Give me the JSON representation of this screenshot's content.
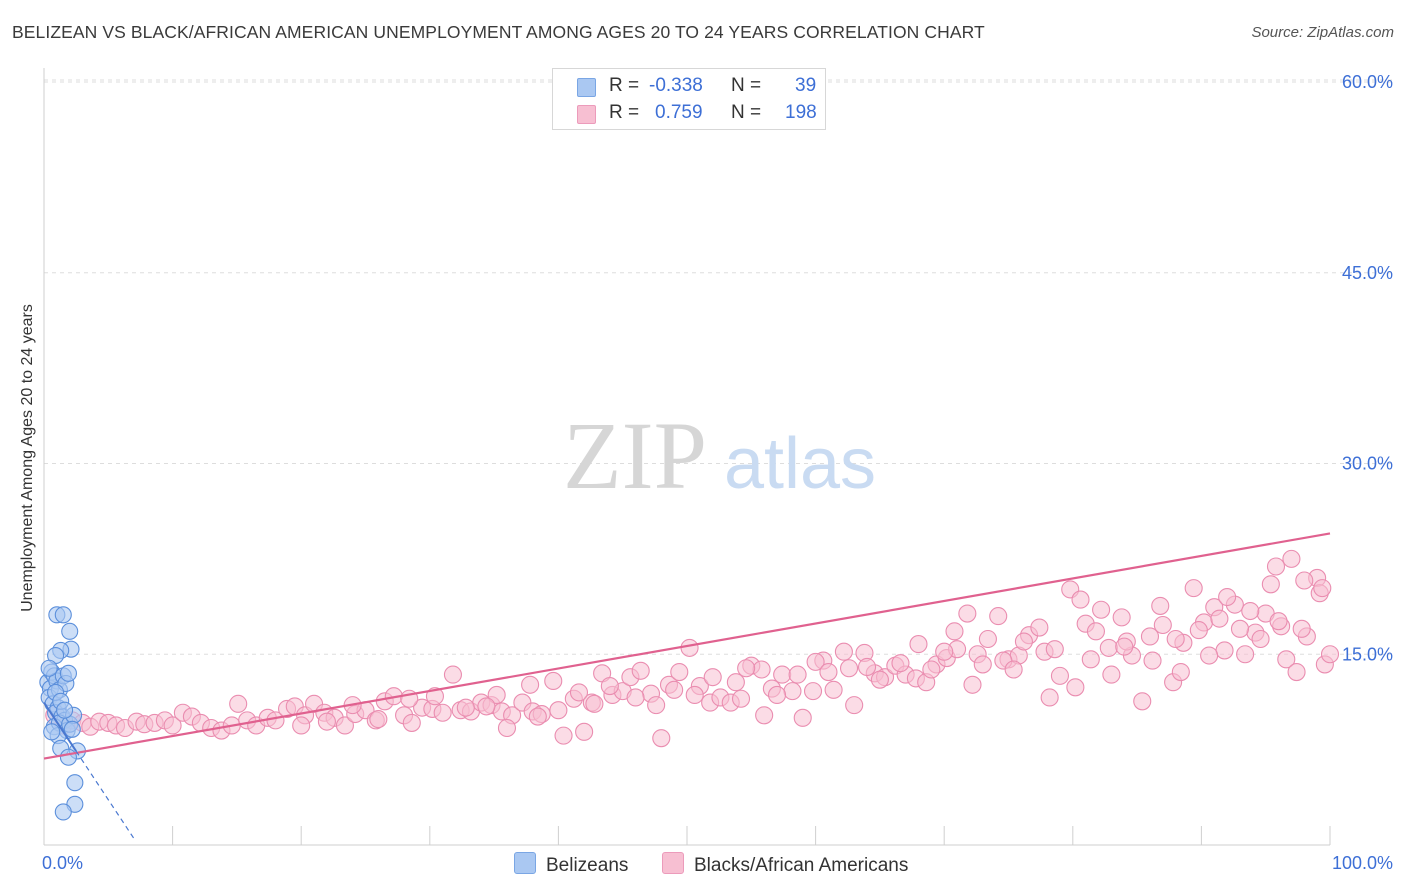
{
  "header": {
    "title": "BELIZEAN VS BLACK/AFRICAN AMERICAN UNEMPLOYMENT AMONG AGES 20 TO 24 YEARS CORRELATION CHART",
    "source": "Source: ZipAtlas.com"
  },
  "legend": {
    "r_label": "R =",
    "n_label": "N =",
    "entries": [
      {
        "r": "-0.338",
        "n": "39"
      },
      {
        "r": "0.759",
        "n": "198"
      }
    ]
  },
  "watermark": {
    "zip": "ZIP",
    "atlas": "atlas"
  },
  "chart_data": {
    "type": "scatter",
    "title": "BELIZEAN VS BLACK/AFRICAN AMERICAN UNEMPLOYMENT AMONG AGES 20 TO 24 YEARS CORRELATION CHART",
    "xlabel": "",
    "ylabel": "Unemployment Among Ages 20 to 24 years",
    "xlim": [
      0,
      100
    ],
    "ylim": [
      0,
      60
    ],
    "x_tick_labels": [
      "0.0%",
      "100.0%"
    ],
    "y_ticks": [
      15,
      30,
      45,
      60
    ],
    "y_tick_labels": [
      "15.0%",
      "30.0%",
      "45.0%",
      "60.0%"
    ],
    "grid": true,
    "colors": {
      "blue_fill": "#aac8f2",
      "blue_stroke": "#5b8fdb",
      "blue_line": "#4a78d0",
      "pink_fill": "#f7bfd2",
      "pink_stroke": "#ea8db0",
      "pink_line": "#e0618f",
      "axis_text": "#3d6fd6"
    },
    "series": [
      {
        "name": "Belizeans",
        "r": -0.338,
        "n": 39,
        "trend": {
          "x": [
            0,
            7.0
          ],
          "y": [
            11.2,
            0.5
          ],
          "solid_until": 2.5
        },
        "points": [
          [
            0.3,
            12.8
          ],
          [
            0.5,
            12.3
          ],
          [
            0.4,
            11.6
          ],
          [
            0.6,
            13.6
          ],
          [
            0.8,
            13.3
          ],
          [
            1.0,
            12.9
          ],
          [
            1.2,
            12.2
          ],
          [
            0.7,
            11.1
          ],
          [
            1.1,
            10.8
          ],
          [
            0.9,
            10.4
          ],
          [
            1.4,
            10.1
          ],
          [
            1.6,
            9.8
          ],
          [
            0.8,
            9.3
          ],
          [
            1.2,
            9.6
          ],
          [
            1.8,
            9.0
          ],
          [
            2.0,
            9.5
          ],
          [
            2.3,
            10.2
          ],
          [
            1.5,
            13.3
          ],
          [
            1.7,
            12.7
          ],
          [
            1.9,
            13.5
          ],
          [
            1.0,
            18.1
          ],
          [
            1.5,
            18.1
          ],
          [
            2.0,
            16.8
          ],
          [
            2.1,
            15.4
          ],
          [
            1.3,
            15.3
          ],
          [
            0.9,
            14.9
          ],
          [
            1.1,
            8.6
          ],
          [
            0.6,
            8.9
          ],
          [
            1.3,
            7.6
          ],
          [
            2.6,
            7.4
          ],
          [
            1.9,
            6.9
          ],
          [
            2.4,
            4.9
          ],
          [
            2.4,
            3.2
          ],
          [
            1.5,
            2.6
          ],
          [
            0.4,
            13.9
          ],
          [
            0.9,
            12.0
          ],
          [
            1.3,
            11.3
          ],
          [
            1.6,
            10.6
          ],
          [
            2.2,
            9.1
          ]
        ]
      },
      {
        "name": "Blacks/African Americans",
        "r": 0.759,
        "n": 198,
        "trend": {
          "x": [
            0,
            100
          ],
          "y": [
            6.8,
            24.5
          ]
        },
        "points": [
          [
            0.8,
            10.2
          ],
          [
            1.5,
            9.4
          ],
          [
            2.2,
            9.8
          ],
          [
            3.0,
            9.6
          ],
          [
            3.6,
            9.3
          ],
          [
            4.3,
            9.7
          ],
          [
            5.0,
            9.6
          ],
          [
            5.6,
            9.4
          ],
          [
            6.3,
            9.2
          ],
          [
            7.2,
            9.7
          ],
          [
            7.8,
            9.5
          ],
          [
            8.6,
            9.6
          ],
          [
            9.4,
            9.8
          ],
          [
            10.0,
            9.4
          ],
          [
            10.8,
            10.4
          ],
          [
            11.5,
            10.1
          ],
          [
            12.2,
            9.6
          ],
          [
            13.0,
            9.2
          ],
          [
            13.8,
            9.0
          ],
          [
            14.6,
            9.4
          ],
          [
            15.1,
            11.1
          ],
          [
            15.8,
            9.8
          ],
          [
            16.5,
            9.4
          ],
          [
            17.4,
            10.0
          ],
          [
            18.0,
            9.8
          ],
          [
            18.9,
            10.7
          ],
          [
            19.5,
            10.9
          ],
          [
            20.3,
            10.2
          ],
          [
            21.0,
            11.1
          ],
          [
            21.8,
            10.4
          ],
          [
            22.6,
            10.0
          ],
          [
            23.4,
            9.4
          ],
          [
            24.2,
            10.3
          ],
          [
            25.0,
            10.6
          ],
          [
            25.8,
            9.8
          ],
          [
            26.5,
            11.3
          ],
          [
            27.2,
            11.7
          ],
          [
            28.0,
            10.2
          ],
          [
            28.6,
            9.6
          ],
          [
            29.4,
            10.8
          ],
          [
            30.2,
            10.7
          ],
          [
            31.0,
            10.4
          ],
          [
            31.8,
            13.4
          ],
          [
            32.4,
            10.6
          ],
          [
            33.2,
            10.5
          ],
          [
            34.0,
            11.2
          ],
          [
            34.8,
            11.0
          ],
          [
            35.6,
            10.5
          ],
          [
            36.4,
            10.2
          ],
          [
            37.2,
            11.2
          ],
          [
            38.0,
            10.5
          ],
          [
            38.7,
            10.3
          ],
          [
            39.6,
            12.9
          ],
          [
            40.4,
            8.6
          ],
          [
            41.2,
            11.5
          ],
          [
            42.0,
            8.9
          ],
          [
            42.6,
            11.2
          ],
          [
            43.4,
            13.5
          ],
          [
            44.2,
            11.8
          ],
          [
            45.0,
            12.1
          ],
          [
            45.6,
            13.2
          ],
          [
            46.4,
            13.7
          ],
          [
            47.2,
            11.9
          ],
          [
            48.0,
            8.4
          ],
          [
            48.6,
            12.6
          ],
          [
            49.4,
            13.6
          ],
          [
            50.2,
            15.5
          ],
          [
            51.0,
            12.5
          ],
          [
            51.8,
            11.2
          ],
          [
            52.6,
            11.6
          ],
          [
            53.4,
            11.2
          ],
          [
            54.2,
            11.5
          ],
          [
            55.0,
            14.1
          ],
          [
            55.8,
            13.8
          ],
          [
            56.6,
            12.3
          ],
          [
            57.4,
            13.4
          ],
          [
            58.2,
            12.1
          ],
          [
            59.0,
            10.0
          ],
          [
            59.8,
            12.1
          ],
          [
            60.6,
            14.5
          ],
          [
            61.4,
            12.2
          ],
          [
            62.2,
            15.2
          ],
          [
            63.0,
            11.0
          ],
          [
            63.8,
            15.1
          ],
          [
            64.6,
            13.5
          ],
          [
            65.4,
            13.2
          ],
          [
            66.2,
            14.1
          ],
          [
            67.0,
            13.4
          ],
          [
            67.8,
            13.1
          ],
          [
            68.6,
            12.8
          ],
          [
            69.4,
            14.2
          ],
          [
            70.2,
            14.7
          ],
          [
            71.0,
            15.4
          ],
          [
            71.8,
            18.2
          ],
          [
            72.6,
            15.0
          ],
          [
            73.4,
            16.2
          ],
          [
            74.2,
            18.0
          ],
          [
            75.0,
            14.6
          ],
          [
            75.8,
            14.9
          ],
          [
            76.6,
            16.5
          ],
          [
            77.4,
            17.1
          ],
          [
            78.2,
            11.6
          ],
          [
            79.0,
            13.3
          ],
          [
            79.8,
            20.1
          ],
          [
            80.6,
            19.3
          ],
          [
            81.4,
            14.6
          ],
          [
            82.2,
            18.5
          ],
          [
            83.0,
            13.4
          ],
          [
            83.8,
            17.9
          ],
          [
            84.6,
            14.9
          ],
          [
            85.4,
            11.3
          ],
          [
            86.2,
            14.5
          ],
          [
            87.0,
            17.3
          ],
          [
            87.8,
            12.8
          ],
          [
            88.6,
            15.9
          ],
          [
            89.4,
            20.2
          ],
          [
            90.2,
            17.5
          ],
          [
            91.0,
            18.7
          ],
          [
            91.8,
            15.3
          ],
          [
            92.6,
            18.9
          ],
          [
            93.4,
            15.0
          ],
          [
            94.2,
            16.7
          ],
          [
            95.0,
            18.2
          ],
          [
            95.8,
            21.9
          ],
          [
            96.6,
            14.6
          ],
          [
            97.4,
            13.6
          ],
          [
            98.2,
            16.4
          ],
          [
            99.0,
            21.0
          ],
          [
            99.6,
            14.2
          ],
          [
            42.8,
            11.1
          ],
          [
            44.0,
            12.5
          ],
          [
            35.2,
            11.8
          ],
          [
            37.8,
            12.6
          ],
          [
            56.0,
            10.2
          ],
          [
            64.0,
            14.0
          ],
          [
            68.0,
            15.8
          ],
          [
            70.8,
            16.8
          ],
          [
            72.2,
            12.6
          ],
          [
            74.6,
            14.5
          ],
          [
            76.2,
            16.0
          ],
          [
            77.8,
            15.2
          ],
          [
            80.2,
            12.4
          ],
          [
            81.0,
            17.4
          ],
          [
            82.8,
            15.5
          ],
          [
            84.2,
            16.0
          ],
          [
            86.8,
            18.8
          ],
          [
            88.0,
            16.2
          ],
          [
            90.6,
            14.9
          ],
          [
            92.0,
            19.5
          ],
          [
            93.8,
            18.4
          ],
          [
            95.4,
            20.5
          ],
          [
            96.2,
            17.2
          ],
          [
            97.0,
            22.5
          ],
          [
            98.0,
            20.8
          ],
          [
            99.2,
            19.8
          ],
          [
            100.0,
            15.0
          ],
          [
            20.0,
            9.4
          ],
          [
            22.0,
            9.7
          ],
          [
            24.0,
            11.0
          ],
          [
            26.0,
            9.9
          ],
          [
            28.4,
            11.5
          ],
          [
            30.4,
            11.7
          ],
          [
            32.8,
            10.8
          ],
          [
            34.4,
            10.9
          ],
          [
            36.0,
            9.2
          ],
          [
            38.4,
            10.1
          ],
          [
            40.0,
            10.6
          ],
          [
            41.6,
            12.0
          ],
          [
            46.0,
            11.6
          ],
          [
            47.6,
            11.0
          ],
          [
            49.0,
            12.2
          ],
          [
            50.6,
            11.8
          ],
          [
            52.0,
            13.2
          ],
          [
            53.8,
            12.8
          ],
          [
            54.6,
            13.9
          ],
          [
            57.0,
            11.8
          ],
          [
            58.6,
            13.4
          ],
          [
            60.0,
            14.4
          ],
          [
            61.0,
            13.6
          ],
          [
            62.6,
            13.9
          ],
          [
            65.0,
            13.0
          ],
          [
            66.6,
            14.3
          ],
          [
            69.0,
            13.8
          ],
          [
            70.0,
            15.2
          ],
          [
            73.0,
            14.2
          ],
          [
            75.4,
            13.8
          ],
          [
            78.6,
            15.4
          ],
          [
            81.8,
            16.8
          ],
          [
            84.0,
            15.6
          ],
          [
            86.0,
            16.4
          ],
          [
            88.4,
            13.6
          ],
          [
            89.8,
            16.9
          ],
          [
            91.4,
            17.8
          ],
          [
            93.0,
            17.0
          ],
          [
            94.6,
            16.2
          ],
          [
            96.0,
            17.6
          ],
          [
            97.8,
            17.0
          ],
          [
            99.4,
            20.2
          ]
        ]
      }
    ]
  },
  "bottom_legend": {
    "items": [
      "Belizeans",
      "Blacks/African Americans"
    ]
  }
}
